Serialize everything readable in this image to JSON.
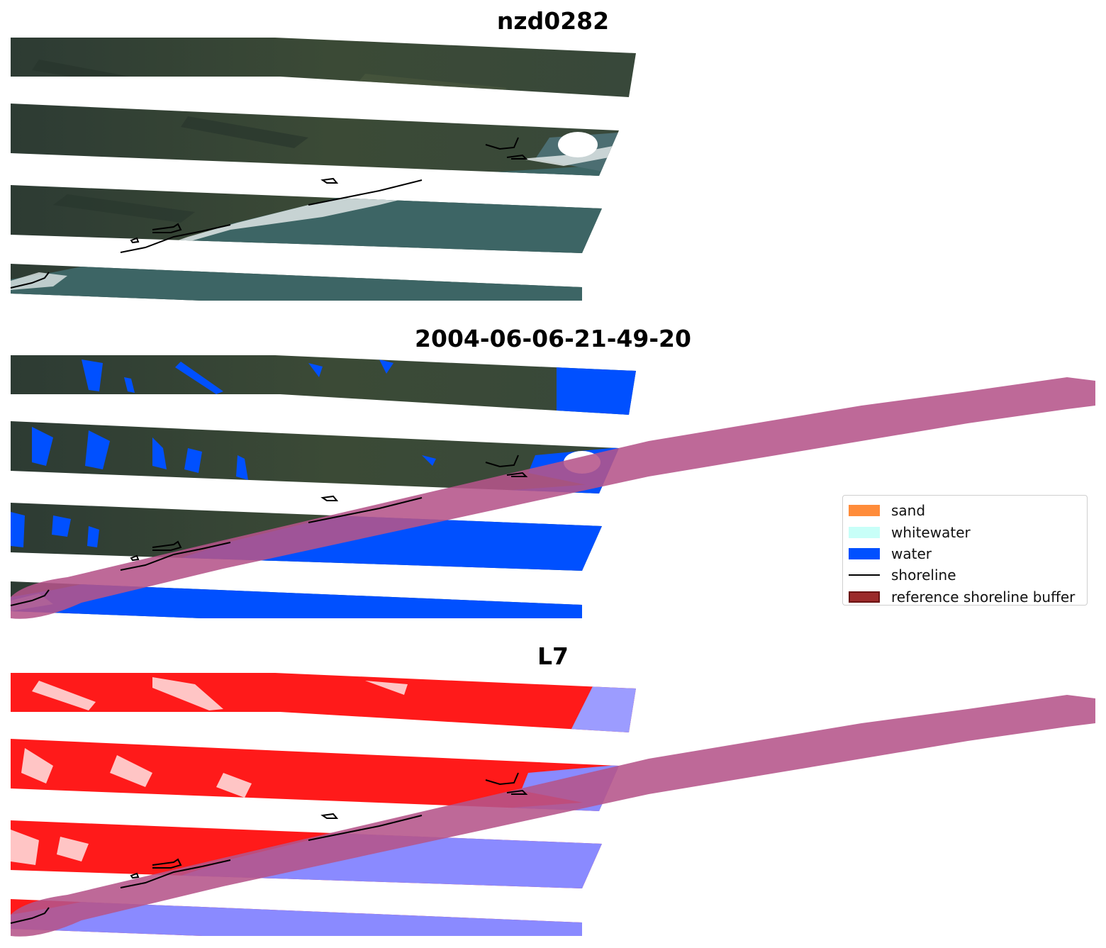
{
  "titles": {
    "site": "nzd0282",
    "date": "2004-06-06-21-49-20",
    "satellite": "L7"
  },
  "legend": {
    "items": [
      {
        "label": "sand",
        "color": "#ff8c3a",
        "kind": "patch"
      },
      {
        "label": "whitewater",
        "color": "#c8fff8",
        "kind": "patch"
      },
      {
        "label": "water",
        "color": "#0050ff",
        "kind": "patch"
      },
      {
        "label": "shoreline",
        "color": "#000000",
        "kind": "line"
      },
      {
        "label": "reference shoreline buffer",
        "color": "#8b1a1a",
        "kind": "patch-edge"
      }
    ]
  },
  "colors": {
    "land": "#3a4a3a",
    "sea": "#3e6868",
    "cloud": "#e8ecec",
    "water_class": "#0050ff",
    "buffer": "#b5548a",
    "index_land": "#ff1a1a",
    "index_water": "#8a8aff"
  }
}
